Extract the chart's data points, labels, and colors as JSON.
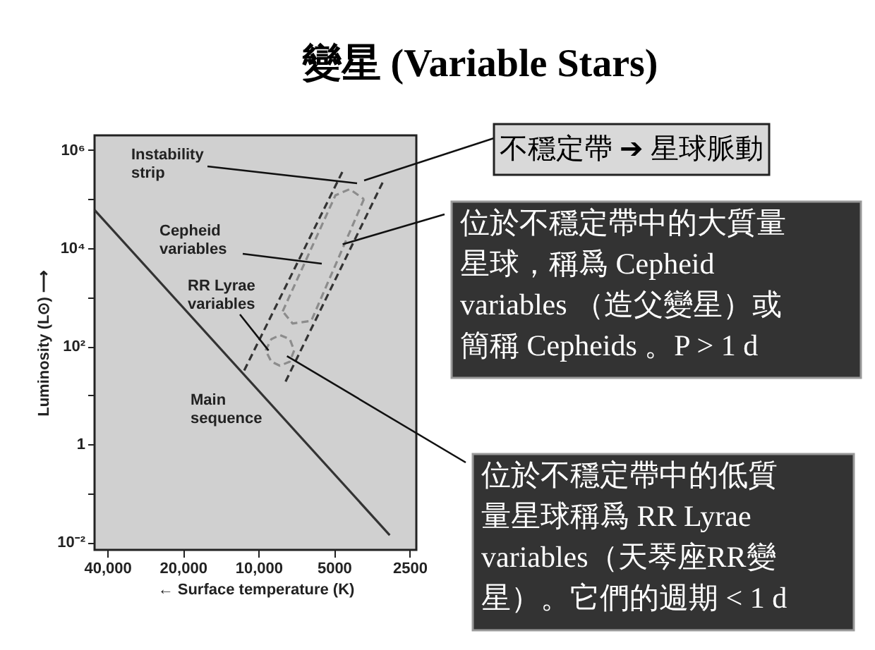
{
  "chart_data": {
    "type": "line",
    "title": "變星 (Variable Stars)",
    "xlabel": "← Surface temperature (K)",
    "ylabel": "Luminosity (L⊙) ⟶",
    "log": "xy",
    "xlim": [
      45000,
      2350
    ],
    "ylim": [
      0.007,
      2000000
    ],
    "xticks": [
      {
        "value": 40000,
        "label": "40,000"
      },
      {
        "value": 20000,
        "label": "20,000"
      },
      {
        "value": 10000,
        "label": "10,000"
      },
      5000,
      2500
    ],
    "yticks": [
      {
        "value": 0.01,
        "label": "10⁻²"
      },
      {
        "value": 0.1,
        "label": null
      },
      1,
      {
        "value": 10,
        "label": null
      },
      {
        "value": 100,
        "label": "10²"
      },
      {
        "value": 1000,
        "label": null
      },
      {
        "value": 10000,
        "label": "10⁴"
      },
      {
        "value": 100000,
        "label": null
      },
      {
        "value": 1000000,
        "label": "10⁶"
      }
    ],
    "grid": false,
    "marker": "none",
    "series": [
      {
        "color": "#333333",
        "line_style": "solid",
        "x": [
          45000,
          3000
        ],
        "values": [
          60000,
          0.014
        ]
      },
      {
        "color": "#333333",
        "line_style": "dashed",
        "x": [
          11400,
          4620
        ],
        "values": [
          32,
          370000
        ]
      },
      {
        "color": "#333333",
        "line_style": "dashed",
        "x": [
          7800,
          3200
        ],
        "values": [
          19,
          220000
        ]
      },
      {
        "color": "#8c8c8c",
        "line_style": "dashed",
        "x": [
          8010,
          4935,
          4330,
          3800
        ],
        "values": [
          515,
          120000,
          160000,
          100000
        ]
      },
      {
        "color": "#8c8c8c",
        "line_style": "dashed",
        "x": [
          3800,
          6160,
          7310,
          8010
        ],
        "values": [
          100000,
          330,
          290,
          515
        ]
      },
      {
        "color": "#8c8c8c",
        "line_style": "dashed",
        "x": [
          9370,
          8890,
          8220,
          7500,
          7210
        ],
        "values": [
          82,
          139,
          169,
          139,
          82
        ]
      },
      {
        "color": "#8c8c8c",
        "line_style": "dashed",
        "x": [
          7210,
          7500,
          8220,
          8890,
          9370
        ],
        "values": [
          82,
          48.5,
          40,
          48.5,
          82
        ]
      }
    ],
    "annotations": [
      "Instability strip",
      "Cepheid variables",
      {
        "text": "RR Lyrae variables",
        "x": 9120,
        "y": 82
      },
      "Main sequence",
      "不穩定帶 ➔ 星球脈動",
      {
        "text": "位於不穩定帶中的大質量星球，稱爲 Cepheid variables （造父變星）或簡稱 Cepheids 。P > 1 d",
        "x": 4620,
        "y": 12000
      },
      {
        "text": "位於不穩定帶中的低質量星球稱爲 RR Lyrae variables（天琴座RR變星）。它們的週期 < 1 d",
        "x": 7700,
        "y": 63
      }
    ]
  }
}
